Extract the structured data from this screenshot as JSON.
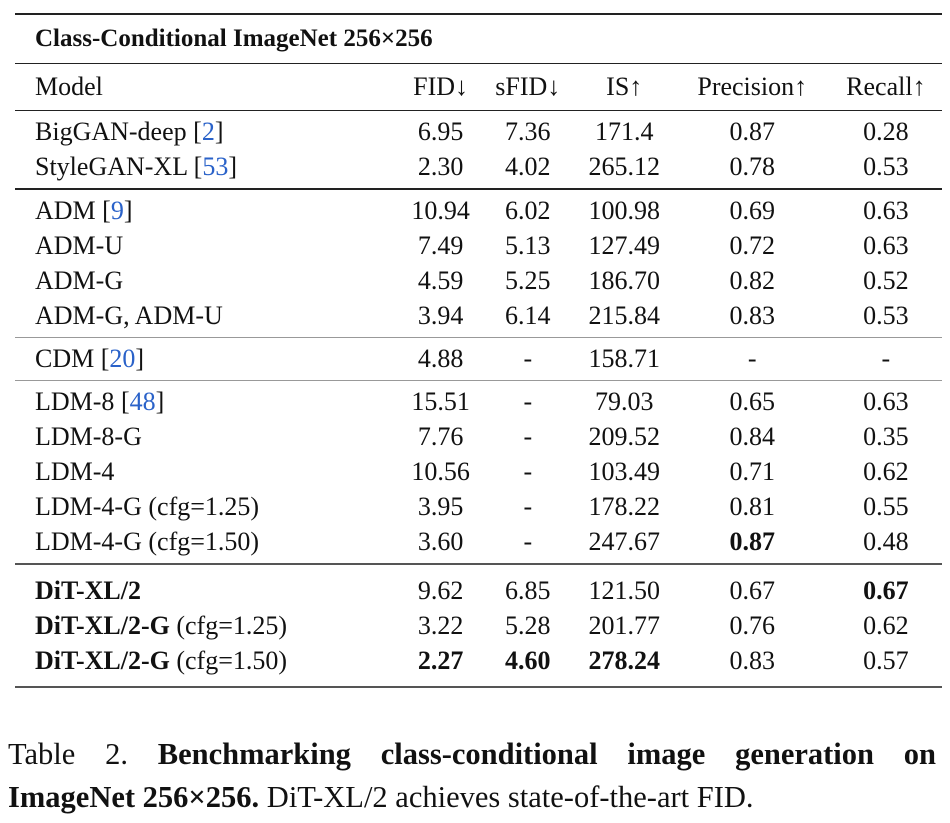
{
  "table": {
    "title": "Class-Conditional ImageNet 256×256",
    "columns": [
      "Model",
      "FID↓",
      "sFID↓",
      "IS↑",
      "Precision↑",
      "Recall↑"
    ],
    "groups": [
      {
        "rows": [
          {
            "model": "BigGAN-deep",
            "ref": "[2]",
            "cells": [
              "6.95",
              "7.36",
              "171.4",
              "0.87",
              "0.28"
            ]
          },
          {
            "model": "StyleGAN-XL",
            "ref": "[53]",
            "cells": [
              "2.30",
              "4.02",
              "265.12",
              "0.78",
              "0.53"
            ]
          }
        ]
      },
      {
        "rows": [
          {
            "model": "ADM",
            "ref": "[9]",
            "cells": [
              "10.94",
              "6.02",
              "100.98",
              "0.69",
              "0.63"
            ]
          },
          {
            "model": "ADM-U",
            "cells": [
              "7.49",
              "5.13",
              "127.49",
              "0.72",
              "0.63"
            ]
          },
          {
            "model": "ADM-G",
            "cells": [
              "4.59",
              "5.25",
              "186.70",
              "0.82",
              "0.52"
            ]
          },
          {
            "model": "ADM-G, ADM-U",
            "cells": [
              "3.94",
              "6.14",
              "215.84",
              "0.83",
              "0.53"
            ]
          }
        ]
      },
      {
        "rows": [
          {
            "model": "CDM",
            "ref": "[20]",
            "cells": [
              "4.88",
              "-",
              "158.71",
              "-",
              "-"
            ]
          }
        ]
      },
      {
        "rows": [
          {
            "model": "LDM-8",
            "ref": "[48]",
            "cells": [
              "15.51",
              "-",
              "79.03",
              "0.65",
              "0.63"
            ]
          },
          {
            "model": "LDM-8-G",
            "cells": [
              "7.76",
              "-",
              "209.52",
              "0.84",
              "0.35"
            ]
          },
          {
            "model": "LDM-4",
            "cells": [
              "10.56",
              "-",
              "103.49",
              "0.71",
              "0.62"
            ]
          },
          {
            "model": "LDM-4-G (cfg=1.25)",
            "cells": [
              "3.95",
              "-",
              "178.22",
              "0.81",
              "0.55"
            ]
          },
          {
            "model": "LDM-4-G (cfg=1.50)",
            "cells": [
              "3.60",
              "-",
              "247.67",
              "0.87",
              "0.48"
            ],
            "bold_cells": [
              3
            ]
          }
        ]
      },
      {
        "rows": [
          {
            "model": "DiT-XL/2",
            "model_bold": true,
            "cells": [
              "9.62",
              "6.85",
              "121.50",
              "0.67",
              "0.67"
            ],
            "bold_cells": [
              4
            ]
          },
          {
            "model": "DiT-XL/2-G",
            "model_bold": true,
            "note": "(cfg=1.25)",
            "cells": [
              "3.22",
              "5.28",
              "201.77",
              "0.76",
              "0.62"
            ]
          },
          {
            "model": "DiT-XL/2-G",
            "model_bold": true,
            "note": "(cfg=1.50)",
            "cells": [
              "2.27",
              "4.60",
              "278.24",
              "0.83",
              "0.57"
            ],
            "bold_cells": [
              0,
              1,
              2
            ]
          }
        ]
      }
    ]
  },
  "caption": {
    "label": "Table 2.",
    "bold": "Benchmarking class-conditional image generation on ImageNet 256×256.",
    "text": "DiT-XL/2 achieves state-of-the-art FID."
  }
}
